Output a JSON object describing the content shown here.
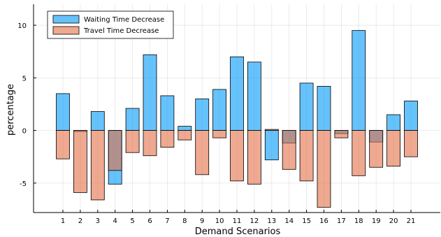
{
  "chart_data": {
    "type": "bar",
    "xlabel": "Demand Scenarios",
    "ylabel": "percentage",
    "ylim": [
      -7.8,
      12
    ],
    "yticks": [
      -5,
      0,
      5,
      10
    ],
    "grid": true,
    "legend_position": "top-left",
    "categories": [
      "1",
      "2",
      "3",
      "4",
      "5",
      "6",
      "7",
      "8",
      "9",
      "10",
      "11",
      "12",
      "13",
      "14",
      "15",
      "16",
      "17",
      "18",
      "19",
      "20",
      "21"
    ],
    "series": [
      {
        "name": "Waiting Time Decrease",
        "color": "#009af9",
        "values": [
          3.5,
          -0.1,
          1.8,
          -5.1,
          2.1,
          7.2,
          3.3,
          0.4,
          3.0,
          3.9,
          7.0,
          6.5,
          -2.8,
          -1.2,
          4.5,
          4.2,
          -0.3,
          9.5,
          -1.1,
          1.5,
          2.8
        ]
      },
      {
        "name": "Travel Time Decrease",
        "color": "#e26f46",
        "values": [
          -2.7,
          -5.9,
          -6.6,
          -3.8,
          -2.1,
          -2.4,
          -1.6,
          -0.9,
          -4.2,
          -0.7,
          -4.8,
          -5.1,
          0.1,
          -3.7,
          -4.8,
          -7.3,
          -0.7,
          -4.3,
          -3.5,
          -3.4,
          -2.5
        ]
      }
    ]
  }
}
